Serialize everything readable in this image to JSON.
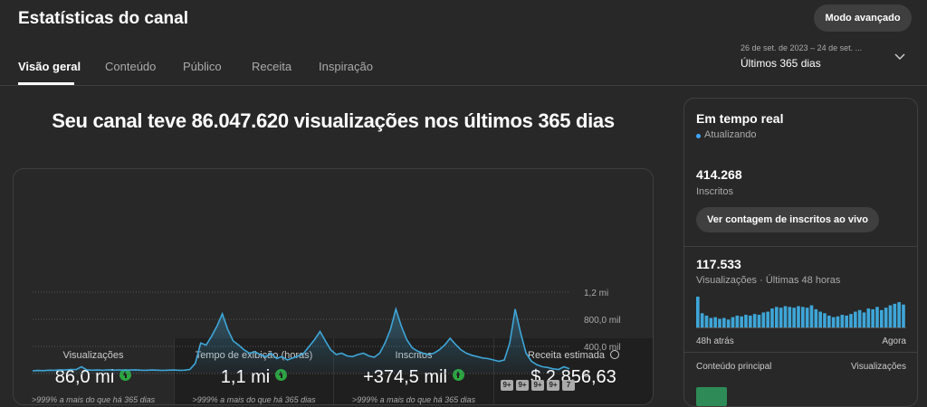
{
  "header": {
    "title": "Estatísticas do canal",
    "button": "Modo avançado",
    "date_range": "26 de set. de 2023 – 24 de set. ...",
    "period": "Últimos 365 dias"
  },
  "tabs": [
    "Visão geral",
    "Conteúdo",
    "Público",
    "Receita",
    "Inspiração"
  ],
  "headline": "Seu canal teve 86.047.620 visualizações nos últimos 365 dias",
  "metrics": [
    {
      "label": "Visualizações",
      "value": "86,0 mi",
      "note": ">999% a mais do que há 365 dias"
    },
    {
      "label": "Tempo de exibição (horas)",
      "value": "1,1 mi",
      "note": ">999% a mais do que há 365 dias"
    },
    {
      "label": "Inscritos",
      "value": "+374,5 mil",
      "note": ">999% a mais do que há 365 dias"
    },
    {
      "label": "Receita estimada",
      "value": "$ 2.856,63"
    }
  ],
  "markers": [
    "9+",
    "9+",
    "9+",
    "9+",
    "7"
  ],
  "realtime": {
    "title": "Em tempo real",
    "status": "Atualizando",
    "subscribers": "414.268",
    "subscribers_label": "Inscritos",
    "button": "Ver contagem de inscritos ao vivo",
    "views": "117.533",
    "views_label": "Visualizações · Últimas 48 horas",
    "top_content": "Conteúdo principal",
    "top_content_metric": "Visualizações"
  },
  "chart_data": [
    {
      "type": "area",
      "color": "#3ea6d8",
      "values": [
        40000,
        45000,
        42000,
        50000,
        48000,
        55000,
        52000,
        60000,
        58000,
        100000,
        55000,
        50000,
        52000,
        48000,
        55000,
        50000,
        53000,
        49000,
        52000,
        55000,
        50000,
        48000,
        52000,
        50000,
        47000,
        50000,
        52000,
        48000,
        50000,
        60000,
        150000,
        450000,
        420000,
        550000,
        700000,
        880000,
        650000,
        480000,
        420000,
        350000,
        300000,
        320000,
        280000,
        250000,
        300000,
        220000,
        250000,
        200000,
        230000,
        260000,
        300000,
        400000,
        500000,
        620000,
        480000,
        350000,
        280000,
        300000,
        260000,
        250000,
        280000,
        300000,
        260000,
        240000,
        300000,
        450000,
        650000,
        950000,
        700000,
        500000,
        380000,
        330000,
        300000,
        280000,
        300000,
        350000,
        420000,
        520000,
        430000,
        350000,
        300000,
        270000,
        250000,
        230000,
        220000,
        200000,
        180000,
        200000,
        450000,
        950000,
        600000,
        300000,
        180000,
        130000,
        100000,
        90000,
        70000,
        60000,
        100000,
        70000
      ],
      "ylim": [
        0,
        1200000
      ],
      "yticks": [
        0,
        {
          "value": 400000,
          "label": "400,0 mil"
        },
        {
          "value": 800000,
          "label": "800,0 mil"
        },
        {
          "value": 1200000,
          "label": "1,2 mi"
        }
      ],
      "grid": true
    },
    {
      "type": "bar",
      "color": "#3ea6d8",
      "categories": [
        "48h atrás",
        null,
        null,
        null,
        null,
        null,
        null,
        null,
        null,
        null,
        null,
        null,
        null,
        null,
        null,
        null,
        null,
        null,
        null,
        null,
        null,
        null,
        null,
        null,
        null,
        null,
        null,
        null,
        null,
        null,
        null,
        null,
        null,
        null,
        null,
        null,
        null,
        null,
        null,
        null,
        null,
        null,
        null,
        null,
        null,
        null,
        null,
        "Agora"
      ],
      "values": [
        3900,
        1800,
        1500,
        1200,
        1300,
        1100,
        1200,
        1000,
        1300,
        1500,
        1400,
        1600,
        1500,
        1700,
        1600,
        1900,
        2000,
        2400,
        2600,
        2500,
        2700,
        2600,
        2500,
        2700,
        2600,
        2500,
        2800,
        2300,
        2000,
        1800,
        1500,
        1300,
        1400,
        1600,
        1500,
        1700,
        2000,
        2200,
        1900,
        2400,
        2300,
        2600,
        2200,
        2500,
        2800,
        3000,
        3200,
        2900
      ]
    }
  ]
}
